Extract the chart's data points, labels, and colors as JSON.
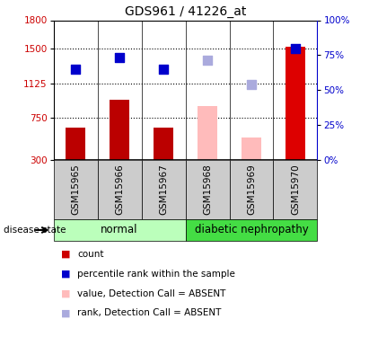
{
  "title": "GDS961 / 41226_at",
  "samples": [
    "GSM15965",
    "GSM15966",
    "GSM15967",
    "GSM15968",
    "GSM15969",
    "GSM15970"
  ],
  "bar_values": [
    650,
    950,
    650,
    880,
    540,
    1520
  ],
  "bar_colors": [
    "#bb0000",
    "#bb0000",
    "#bb0000",
    "#ffbbbb",
    "#ffbbbb",
    "#dd0000"
  ],
  "dot_values": [
    1270,
    1400,
    1270,
    1370,
    1110,
    1500
  ],
  "dot_colors": [
    "#0000cc",
    "#0000cc",
    "#0000cc",
    "#aaaadd",
    "#aaaadd",
    "#0000cc"
  ],
  "ylim_left": [
    300,
    1800
  ],
  "ylim_right": [
    0,
    100
  ],
  "yticks_left": [
    300,
    750,
    1125,
    1500,
    1800
  ],
  "yticks_right": [
    0,
    25,
    50,
    75,
    100
  ],
  "ytick_labels_right": [
    "0%",
    "25%",
    "50%",
    "75%",
    "100%"
  ],
  "hlines": [
    750,
    1125,
    1500
  ],
  "groups": [
    {
      "label": "normal",
      "start": 0,
      "end": 3,
      "color": "#bbffbb"
    },
    {
      "label": "diabetic nephropathy",
      "start": 3,
      "end": 6,
      "color": "#44dd44"
    }
  ],
  "disease_state_label": "disease state",
  "legend": [
    {
      "label": "count",
      "color": "#cc0000"
    },
    {
      "label": "percentile rank within the sample",
      "color": "#0000cc"
    },
    {
      "label": "value, Detection Call = ABSENT",
      "color": "#ffbbbb"
    },
    {
      "label": "rank, Detection Call = ABSENT",
      "color": "#aaaadd"
    }
  ],
  "bar_width": 0.45,
  "dot_size": 55
}
